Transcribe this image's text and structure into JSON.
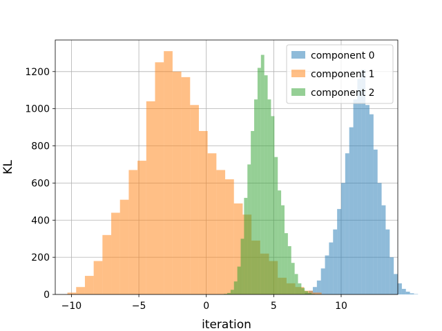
{
  "chart_data": {
    "type": "bar",
    "subtype": "histogram",
    "title": "",
    "xlabel": "iteration",
    "ylabel": "KL",
    "xlim": [
      -11.2,
      14.2
    ],
    "ylim": [
      0,
      1370
    ],
    "xticks": [
      -10,
      -5,
      0,
      5,
      10
    ],
    "xtick_labels": [
      "−10",
      "−5",
      "0",
      "5",
      "10"
    ],
    "yticks": [
      0,
      200,
      400,
      600,
      800,
      1000,
      1200
    ],
    "grid": true,
    "legend_position": "top-right",
    "series": [
      {
        "name": "component 0",
        "color": "#1f77b4",
        "alpha": 0.5,
        "bin_start": 7.0,
        "bin_width": 0.3,
        "counts": [
          2,
          7,
          20,
          40,
          75,
          140,
          210,
          280,
          350,
          460,
          600,
          760,
          900,
          1050,
          1160,
          1210,
          1020,
          970,
          780,
          600,
          480,
          350,
          200,
          110,
          60,
          30,
          15,
          6,
          2
        ]
      },
      {
        "name": "component 1",
        "color": "#ff7f0e",
        "alpha": 0.5,
        "bin_start": -10.3,
        "bin_width": 0.65,
        "counts": [
          10,
          40,
          100,
          180,
          320,
          440,
          510,
          670,
          720,
          1040,
          1250,
          1310,
          1200,
          1170,
          1020,
          880,
          760,
          670,
          620,
          490,
          430,
          290,
          220,
          180,
          90,
          60,
          40,
          20,
          10
        ]
      },
      {
        "name": "component 2",
        "color": "#2ca02c",
        "alpha": 0.5,
        "bin_start": 1.3,
        "bin_width": 0.25,
        "counts": [
          3,
          8,
          25,
          70,
          150,
          300,
          520,
          700,
          880,
          1050,
          1220,
          1290,
          1180,
          1050,
          960,
          740,
          560,
          480,
          330,
          260,
          170,
          110,
          60,
          35,
          18,
          8,
          3
        ]
      }
    ]
  }
}
